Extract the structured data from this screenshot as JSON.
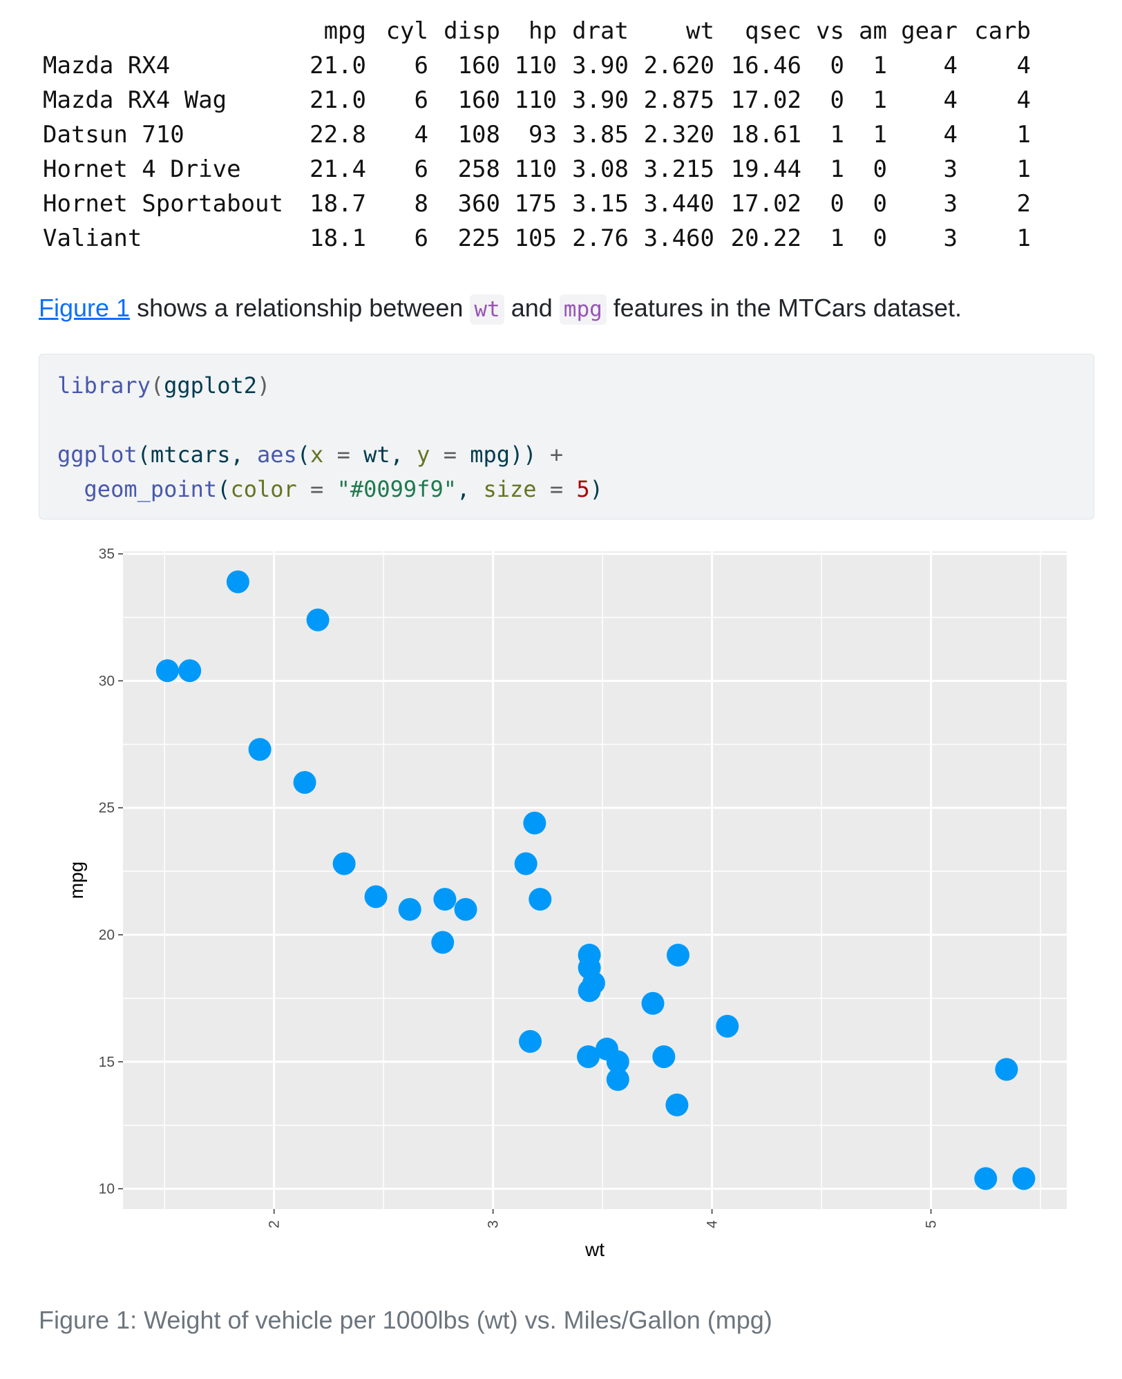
{
  "table": {
    "columns": [
      "mpg",
      "cyl",
      "disp",
      "hp",
      "drat",
      "wt",
      "qsec",
      "vs",
      "am",
      "gear",
      "carb"
    ],
    "rows": [
      {
        "name": "Mazda RX4",
        "values": [
          "21.0",
          "6",
          "160",
          "110",
          "3.90",
          "2.620",
          "16.46",
          "0",
          "1",
          "4",
          "4"
        ]
      },
      {
        "name": "Mazda RX4 Wag",
        "values": [
          "21.0",
          "6",
          "160",
          "110",
          "3.90",
          "2.875",
          "17.02",
          "0",
          "1",
          "4",
          "4"
        ]
      },
      {
        "name": "Datsun 710",
        "values": [
          "22.8",
          "4",
          "108",
          "93",
          "3.85",
          "2.320",
          "18.61",
          "1",
          "1",
          "4",
          "1"
        ]
      },
      {
        "name": "Hornet 4 Drive",
        "values": [
          "21.4",
          "6",
          "258",
          "110",
          "3.08",
          "3.215",
          "19.44",
          "1",
          "0",
          "3",
          "1"
        ]
      },
      {
        "name": "Hornet Sportabout",
        "values": [
          "18.7",
          "8",
          "360",
          "175",
          "3.15",
          "3.440",
          "17.02",
          "0",
          "0",
          "3",
          "2"
        ]
      },
      {
        "name": "Valiant",
        "values": [
          "18.1",
          "6",
          "225",
          "105",
          "2.76",
          "3.460",
          "20.22",
          "1",
          "0",
          "3",
          "1"
        ]
      }
    ]
  },
  "paragraph": {
    "link": "Figure 1",
    "text1": " shows a relationship between ",
    "code1": "wt",
    "text2": " and ",
    "code2": "mpg",
    "text3": " features in the MTCars dataset."
  },
  "code": {
    "line1": {
      "fn": "library",
      "p1": "(",
      "arg": "ggplot2",
      "p2": ")"
    },
    "line3": {
      "fn1": "ggplot",
      "p1": "(mtcars, ",
      "fn2": "aes",
      "p2": "(",
      "a1": "x",
      "eq1": " = ",
      "v1": "wt",
      "c1": ", ",
      "a2": "y",
      "eq2": " = ",
      "v2": "mpg",
      "p3": ")) ",
      "plus": "+"
    },
    "line4": {
      "indent": "  ",
      "fn": "geom_point",
      "p1": "(",
      "a1": "color",
      "eq1": " = ",
      "str": "\"#0099f9\"",
      "c1": ", ",
      "a2": "size",
      "eq2": " = ",
      "num": "5",
      "p2": ")"
    }
  },
  "chart_data": {
    "type": "scatter",
    "xlabel": "wt",
    "ylabel": "mpg",
    "xlim": [
      1.31,
      5.62
    ],
    "ylim": [
      9.2,
      35.1
    ],
    "xticks": [
      2,
      3,
      4,
      5
    ],
    "yticks": [
      10,
      15,
      20,
      25,
      30,
      35
    ],
    "point_color": "#0099f9",
    "panel_background": "#ebebeb",
    "grid": true,
    "points": [
      [
        2.62,
        21.0
      ],
      [
        2.875,
        21.0
      ],
      [
        2.32,
        22.8
      ],
      [
        3.215,
        21.4
      ],
      [
        3.44,
        18.7
      ],
      [
        3.46,
        18.1
      ],
      [
        3.57,
        14.3
      ],
      [
        3.19,
        24.4
      ],
      [
        3.15,
        22.8
      ],
      [
        3.44,
        19.2
      ],
      [
        3.44,
        17.8
      ],
      [
        4.07,
        16.4
      ],
      [
        3.73,
        17.3
      ],
      [
        3.78,
        15.2
      ],
      [
        5.25,
        10.4
      ],
      [
        5.424,
        10.4
      ],
      [
        5.345,
        14.7
      ],
      [
        2.2,
        32.4
      ],
      [
        1.615,
        30.4
      ],
      [
        1.835,
        33.9
      ],
      [
        2.465,
        21.5
      ],
      [
        3.52,
        15.5
      ],
      [
        3.435,
        15.2
      ],
      [
        3.84,
        13.3
      ],
      [
        3.845,
        19.2
      ],
      [
        1.935,
        27.3
      ],
      [
        2.14,
        26.0
      ],
      [
        1.513,
        30.4
      ],
      [
        3.17,
        15.8
      ],
      [
        2.77,
        19.7
      ],
      [
        3.57,
        15.0
      ],
      [
        2.78,
        21.4
      ]
    ]
  },
  "caption": "Figure 1: Weight of vehicle per 1000lbs (wt) vs. Miles/Gallon (mpg)"
}
